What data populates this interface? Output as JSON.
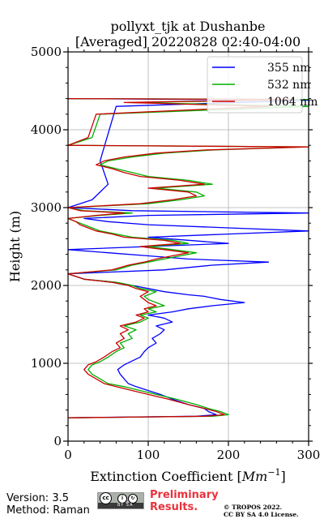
{
  "chart_data": {
    "type": "line",
    "title": "pollyxt_tjk at Dushanbe",
    "subtitle": "[Averaged] 20220828 02:40-04:00",
    "xlabel": "Extinction Coefficient [",
    "xlabel_unit": "Mm",
    "xlabel_exp": "−1",
    "xlabel_end": "]",
    "ylabel": "Height (m)",
    "xlim": [
      0,
      300
    ],
    "ylim": [
      0,
      5000
    ],
    "xticks": [
      0,
      100,
      200,
      300
    ],
    "yticks": [
      0,
      1000,
      2000,
      3000,
      4000,
      5000
    ],
    "xtick_labels": [
      "0",
      "100",
      "200",
      "300"
    ],
    "ytick_labels": [
      "0",
      "1000",
      "2000",
      "3000",
      "4000",
      "5000"
    ],
    "grid": true,
    "legend_position": "top-right",
    "series": [
      {
        "name": "355 nm",
        "color": "#0000ff",
        "points": [
          [
            0,
            300
          ],
          [
            160,
            320
          ],
          [
            185,
            340
          ],
          [
            175,
            380
          ],
          [
            170,
            420
          ],
          [
            150,
            470
          ],
          [
            130,
            540
          ],
          [
            115,
            600
          ],
          [
            100,
            650
          ],
          [
            85,
            700
          ],
          [
            75,
            740
          ],
          [
            70,
            800
          ],
          [
            65,
            860
          ],
          [
            62,
            920
          ],
          [
            70,
            980
          ],
          [
            78,
            1020
          ],
          [
            90,
            1080
          ],
          [
            95,
            1150
          ],
          [
            100,
            1200
          ],
          [
            110,
            1260
          ],
          [
            105,
            1320
          ],
          [
            115,
            1380
          ],
          [
            120,
            1430
          ],
          [
            110,
            1480
          ],
          [
            130,
            1530
          ],
          [
            120,
            1580
          ],
          [
            100,
            1620
          ],
          [
            130,
            1660
          ],
          [
            150,
            1700
          ],
          [
            180,
            1740
          ],
          [
            220,
            1780
          ],
          [
            190,
            1820
          ],
          [
            170,
            1860
          ],
          [
            150,
            1880
          ],
          [
            120,
            1920
          ],
          [
            100,
            1960
          ],
          [
            80,
            2000
          ],
          [
            60,
            2040
          ],
          [
            20,
            2080
          ],
          [
            0,
            2150
          ],
          [
            120,
            2200
          ],
          [
            180,
            2260
          ],
          [
            250,
            2300
          ],
          [
            150,
            2340
          ],
          [
            100,
            2380
          ],
          [
            50,
            2420
          ],
          [
            0,
            2460
          ],
          [
            100,
            2500
          ],
          [
            200,
            2540
          ],
          [
            150,
            2580
          ],
          [
            100,
            2620
          ],
          [
            200,
            2660
          ],
          [
            300,
            2700
          ],
          [
            200,
            2740
          ],
          [
            100,
            2780
          ],
          [
            50,
            2820
          ],
          [
            20,
            2860
          ],
          [
            100,
            2900
          ],
          [
            300,
            2930
          ],
          [
            80,
            2960
          ],
          [
            0,
            3000
          ],
          [
            30,
            3100
          ],
          [
            50,
            3300
          ],
          [
            40,
            3600
          ],
          [
            60,
            4300
          ],
          [
            300,
            4380
          ],
          [
            0,
            4400
          ]
        ]
      },
      {
        "name": "532 nm",
        "color": "#00b000",
        "points": [
          [
            0,
            300
          ],
          [
            180,
            320
          ],
          [
            200,
            340
          ],
          [
            190,
            380
          ],
          [
            175,
            420
          ],
          [
            160,
            470
          ],
          [
            135,
            540
          ],
          [
            110,
            600
          ],
          [
            90,
            650
          ],
          [
            70,
            700
          ],
          [
            50,
            740
          ],
          [
            40,
            800
          ],
          [
            30,
            860
          ],
          [
            25,
            920
          ],
          [
            30,
            980
          ],
          [
            40,
            1020
          ],
          [
            50,
            1080
          ],
          [
            60,
            1150
          ],
          [
            70,
            1200
          ],
          [
            65,
            1260
          ],
          [
            80,
            1320
          ],
          [
            75,
            1380
          ],
          [
            85,
            1430
          ],
          [
            70,
            1480
          ],
          [
            90,
            1530
          ],
          [
            100,
            1580
          ],
          [
            90,
            1620
          ],
          [
            110,
            1660
          ],
          [
            100,
            1700
          ],
          [
            120,
            1740
          ],
          [
            110,
            1780
          ],
          [
            100,
            1820
          ],
          [
            95,
            1860
          ],
          [
            110,
            1920
          ],
          [
            90,
            1960
          ],
          [
            80,
            2000
          ],
          [
            60,
            2040
          ],
          [
            20,
            2080
          ],
          [
            0,
            2150
          ],
          [
            60,
            2200
          ],
          [
            80,
            2260
          ],
          [
            100,
            2300
          ],
          [
            120,
            2340
          ],
          [
            140,
            2380
          ],
          [
            160,
            2420
          ],
          [
            130,
            2460
          ],
          [
            100,
            2500
          ],
          [
            150,
            2540
          ],
          [
            130,
            2580
          ],
          [
            80,
            2620
          ],
          [
            60,
            2660
          ],
          [
            40,
            2700
          ],
          [
            30,
            2740
          ],
          [
            20,
            2780
          ],
          [
            10,
            2820
          ],
          [
            0,
            2860
          ],
          [
            40,
            2900
          ],
          [
            80,
            2930
          ],
          [
            20,
            2960
          ],
          [
            0,
            3000
          ],
          [
            100,
            3050
          ],
          [
            140,
            3100
          ],
          [
            170,
            3150
          ],
          [
            160,
            3200
          ],
          [
            110,
            3250
          ],
          [
            180,
            3300
          ],
          [
            150,
            3350
          ],
          [
            100,
            3400
          ],
          [
            80,
            3450
          ],
          [
            60,
            3500
          ],
          [
            40,
            3550
          ],
          [
            50,
            3600
          ],
          [
            80,
            3650
          ],
          [
            120,
            3700
          ],
          [
            180,
            3740
          ],
          [
            300,
            3780
          ],
          [
            0,
            3800
          ],
          [
            30,
            3900
          ],
          [
            40,
            4200
          ],
          [
            300,
            4300
          ],
          [
            80,
            4350
          ],
          [
            300,
            4390
          ],
          [
            0,
            4400
          ]
        ]
      },
      {
        "name": "1064 nm",
        "color": "#cc0000",
        "points": [
          [
            0,
            300
          ],
          [
            170,
            320
          ],
          [
            195,
            340
          ],
          [
            185,
            380
          ],
          [
            170,
            420
          ],
          [
            150,
            470
          ],
          [
            125,
            540
          ],
          [
            100,
            600
          ],
          [
            80,
            650
          ],
          [
            60,
            700
          ],
          [
            45,
            740
          ],
          [
            35,
            800
          ],
          [
            25,
            860
          ],
          [
            20,
            920
          ],
          [
            25,
            980
          ],
          [
            35,
            1020
          ],
          [
            45,
            1080
          ],
          [
            55,
            1150
          ],
          [
            65,
            1200
          ],
          [
            60,
            1260
          ],
          [
            70,
            1320
          ],
          [
            65,
            1380
          ],
          [
            75,
            1430
          ],
          [
            65,
            1480
          ],
          [
            85,
            1530
          ],
          [
            95,
            1580
          ],
          [
            85,
            1620
          ],
          [
            100,
            1660
          ],
          [
            95,
            1700
          ],
          [
            110,
            1740
          ],
          [
            100,
            1780
          ],
          [
            95,
            1820
          ],
          [
            90,
            1860
          ],
          [
            100,
            1920
          ],
          [
            85,
            1960
          ],
          [
            75,
            2000
          ],
          [
            55,
            2040
          ],
          [
            20,
            2080
          ],
          [
            0,
            2150
          ],
          [
            55,
            2200
          ],
          [
            75,
            2260
          ],
          [
            95,
            2300
          ],
          [
            110,
            2340
          ],
          [
            130,
            2380
          ],
          [
            150,
            2420
          ],
          [
            120,
            2460
          ],
          [
            90,
            2500
          ],
          [
            140,
            2540
          ],
          [
            120,
            2580
          ],
          [
            70,
            2620
          ],
          [
            55,
            2660
          ],
          [
            35,
            2700
          ],
          [
            25,
            2740
          ],
          [
            15,
            2780
          ],
          [
            10,
            2820
          ],
          [
            0,
            2860
          ],
          [
            35,
            2900
          ],
          [
            70,
            2930
          ],
          [
            15,
            2960
          ],
          [
            0,
            3000
          ],
          [
            90,
            3050
          ],
          [
            130,
            3100
          ],
          [
            160,
            3150
          ],
          [
            150,
            3200
          ],
          [
            100,
            3250
          ],
          [
            170,
            3300
          ],
          [
            140,
            3350
          ],
          [
            90,
            3400
          ],
          [
            70,
            3450
          ],
          [
            55,
            3500
          ],
          [
            35,
            3550
          ],
          [
            45,
            3600
          ],
          [
            70,
            3650
          ],
          [
            110,
            3700
          ],
          [
            170,
            3740
          ],
          [
            300,
            3780
          ],
          [
            0,
            3800
          ],
          [
            25,
            3900
          ],
          [
            35,
            4200
          ],
          [
            250,
            4300
          ],
          [
            70,
            4350
          ],
          [
            280,
            4390
          ],
          [
            0,
            4400
          ]
        ]
      }
    ]
  },
  "footer": {
    "version": "Version: 3.5",
    "method": "Method: Raman",
    "cc_label": "BY   SA",
    "preliminary_1": "Preliminary",
    "preliminary_2": "Results.",
    "copyright_1": "© TROPOS 2022.",
    "copyright_2": "CC BY SA 4.0 License."
  }
}
